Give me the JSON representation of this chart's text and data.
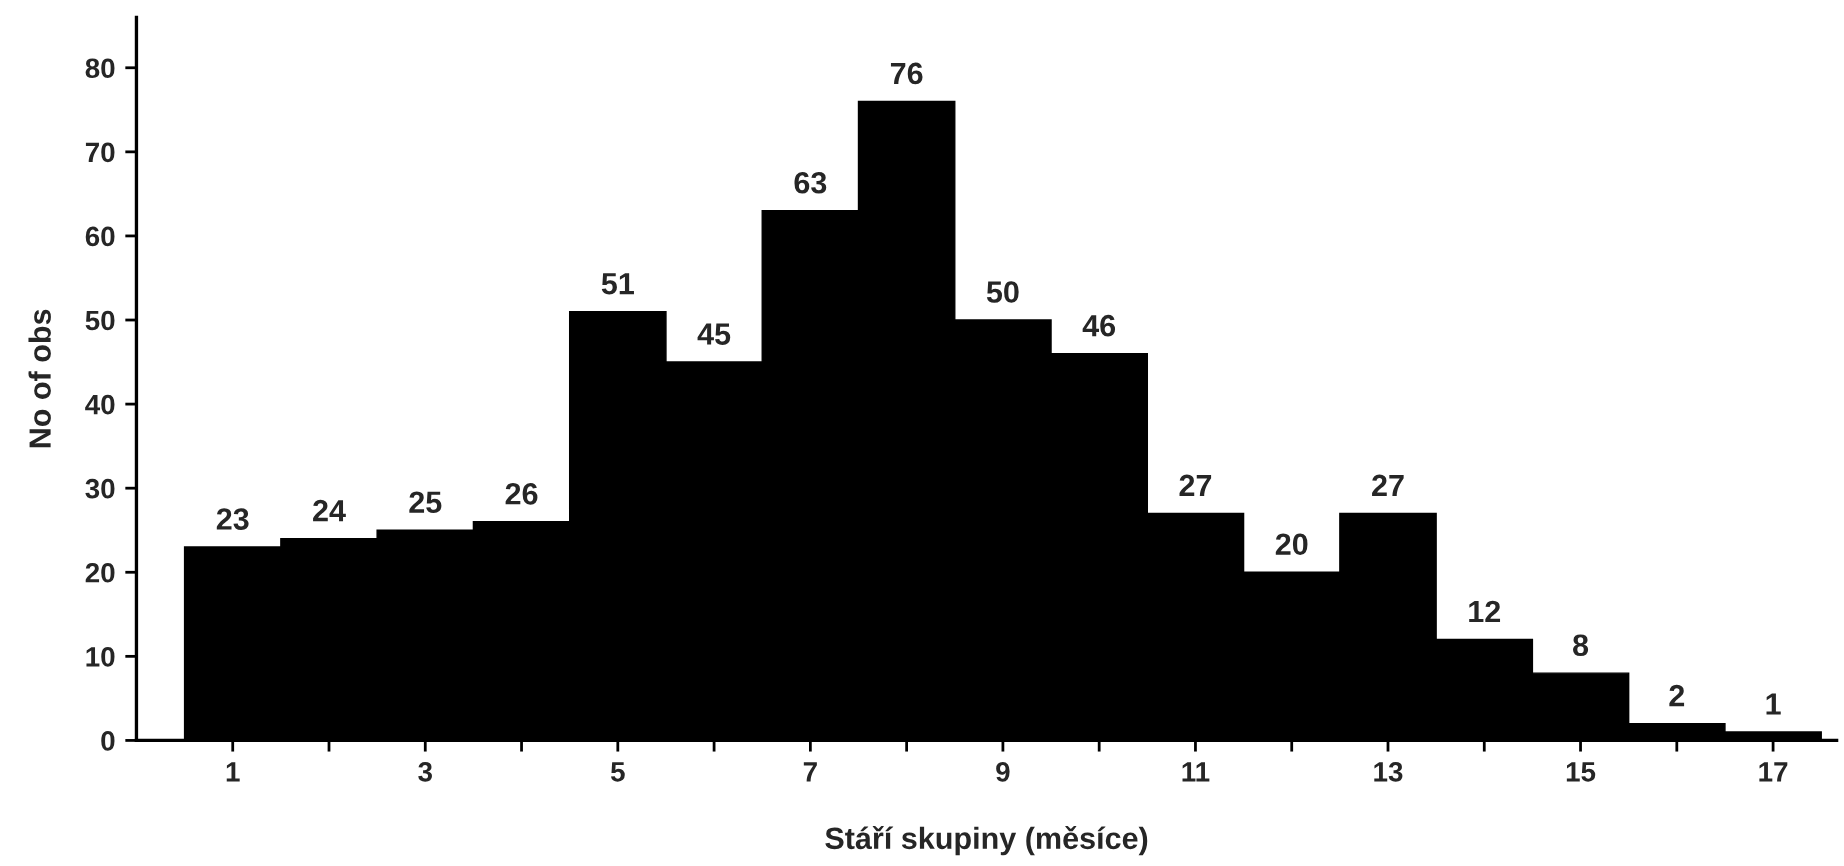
{
  "chart_data": {
    "type": "bar",
    "xlabel": "Stáří skupiny (měsíce)",
    "ylabel": "No of obs",
    "categories": [
      "1",
      null,
      "3",
      null,
      "5",
      null,
      "7",
      null,
      "9",
      null,
      "11",
      null,
      "13",
      null,
      "15",
      null,
      "17"
    ],
    "values": [
      23,
      24,
      25,
      26,
      51,
      45,
      63,
      76,
      50,
      46,
      27,
      20,
      27,
      12,
      8,
      2,
      1
    ],
    "color": "#000000",
    "ylim": [
      0,
      86
    ],
    "yticks": [
      0,
      10,
      20,
      30,
      40,
      50,
      60,
      70,
      80
    ],
    "data_labels": true,
    "grid": false,
    "legend": false
  }
}
